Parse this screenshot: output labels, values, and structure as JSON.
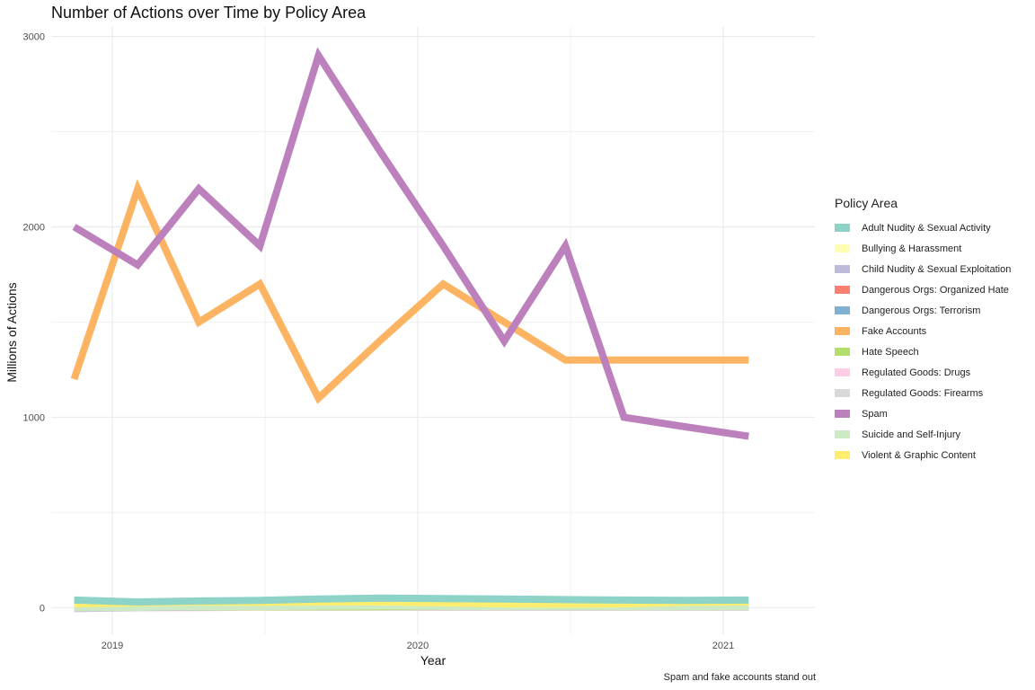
{
  "chart_data": {
    "type": "line",
    "title": "Number of Actions over Time by Policy Area",
    "caption": "Spam and fake accounts stand out",
    "xlabel": "Year",
    "ylabel": "Millions of Actions",
    "legend_title": "Policy Area",
    "legend_position": "right",
    "grid": true,
    "xlim": [
      2018.8,
      2021.3
    ],
    "ylim": [
      -140,
      3050
    ],
    "x_ticks": [
      2019,
      2020,
      2021
    ],
    "y_ticks": [
      0,
      1000,
      2000,
      3000
    ],
    "x": [
      2018.875,
      2019.0833,
      2019.2833,
      2019.4833,
      2019.675,
      2019.875,
      2020.0833,
      2020.2833,
      2020.4833,
      2020.675,
      2020.875,
      2021.0833
    ],
    "series": [
      {
        "name": "Adult Nudity & Sexual Activity",
        "color": "#8DD3C7",
        "values": [
          40,
          30,
          35,
          38,
          45,
          50,
          48,
          45,
          42,
          40,
          38,
          40
        ]
      },
      {
        "name": "Bullying & Harassment",
        "color": "#FFFFB3",
        "values": [
          3,
          3,
          3,
          3,
          3,
          3,
          4,
          4,
          4,
          4,
          4,
          4
        ]
      },
      {
        "name": "Child Nudity & Sexual Exploitation",
        "color": "#BEBADA",
        "values": [
          -5,
          0,
          2,
          5,
          5,
          6,
          6,
          6,
          6,
          6,
          6,
          6
        ]
      },
      {
        "name": "Dangerous Orgs: Organized Hate",
        "color": "#FB8072",
        "values": [
          1,
          1,
          1,
          2,
          2,
          2,
          2,
          2,
          2,
          2,
          2,
          2
        ]
      },
      {
        "name": "Dangerous Orgs: Terrorism",
        "color": "#80B1D3",
        "values": [
          5,
          5,
          5,
          6,
          6,
          6,
          6,
          6,
          6,
          6,
          6,
          6
        ]
      },
      {
        "name": "Fake Accounts",
        "color": "#FDB462",
        "values": [
          1200,
          2200,
          1500,
          1700,
          1100,
          1400,
          1700,
          1500,
          1300,
          1300,
          1300,
          1300
        ]
      },
      {
        "name": "Hate Speech",
        "color": "#B3DE69",
        "values": [
          3,
          4,
          4,
          5,
          5,
          6,
          7,
          8,
          9,
          10,
          10,
          10
        ]
      },
      {
        "name": "Regulated Goods: Drugs",
        "color": "#FCCDE5",
        "values": [
          2,
          2,
          2,
          2,
          2,
          2,
          2,
          2,
          2,
          2,
          2,
          2
        ]
      },
      {
        "name": "Regulated Goods: Firearms",
        "color": "#D9D9D9",
        "values": [
          -2,
          2,
          8,
          4,
          3,
          3,
          3,
          3,
          3,
          3,
          3,
          3
        ]
      },
      {
        "name": "Spam",
        "color": "#BC80BD",
        "values": [
          2000,
          1800,
          2200,
          1900,
          2900,
          2400,
          1900,
          1400,
          1900,
          1000,
          950,
          900
        ]
      },
      {
        "name": "Suicide and Self-Injury",
        "color": "#CCEBC5",
        "values": [
          3,
          3,
          5,
          5,
          8,
          10,
          8,
          6,
          5,
          5,
          5,
          5
        ]
      },
      {
        "name": "Violent & Graphic Content",
        "color": "#FFED6F",
        "values": [
          20,
          25,
          30,
          28,
          30,
          30,
          25,
          20,
          18,
          20,
          28,
          30
        ]
      }
    ]
  }
}
